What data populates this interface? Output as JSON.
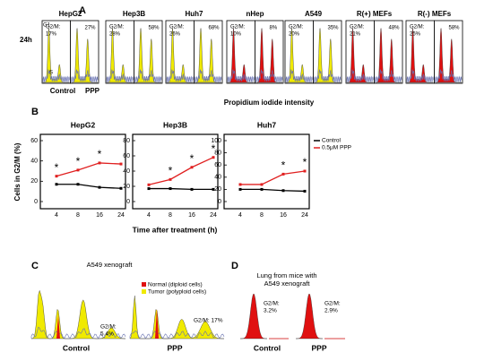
{
  "panels": {
    "A": {
      "label": "A",
      "time": "24h",
      "axis": "Propidium iodide intensity",
      "control": "Control",
      "ppp": "PPP",
      "cells": [
        {
          "name": "HepG2",
          "color": "#f0ea00",
          "g1": "G1",
          "s": "S",
          "control": [
            "G2/M:",
            "17%"
          ],
          "ppp": [
            "27%"
          ]
        },
        {
          "name": "Hep3B",
          "color": "#f0ea00",
          "control": [
            "G2/M:",
            "28%"
          ],
          "ppp": [
            "58%"
          ]
        },
        {
          "name": "Huh7",
          "color": "#f0ea00",
          "control": [
            "G2/M:",
            "26%"
          ],
          "ppp": [
            "68%"
          ]
        },
        {
          "name": "nHep",
          "color": "#e01010",
          "control": [
            "G2/M:",
            "10%"
          ],
          "ppp": [
            "8%"
          ]
        },
        {
          "name": "A549",
          "color": "#f0ea00",
          "control": [
            "G2/M:",
            "20%"
          ],
          "ppp": [
            "35%"
          ]
        },
        {
          "name": "R(+) MEFs",
          "color": "#e01010",
          "control": [
            "G2/M:",
            "21%"
          ],
          "ppp": [
            "48%"
          ]
        },
        {
          "name": "R(-) MEFs",
          "color": "#e01010",
          "control": [
            "G2/M:",
            "25%"
          ],
          "ppp": [
            "58%"
          ]
        }
      ]
    },
    "B": {
      "label": "B",
      "y_label": "Cells in G2/M (%)",
      "x_label": "Time after treatment (h)"
    },
    "C": {
      "label": "C",
      "title": "A549 xenograft",
      "legend": [
        {
          "text": "Normal (diploid cells)",
          "color": "#e01010"
        },
        {
          "text": "Tumor (polyploid  cells)",
          "color": "#f0ea00"
        }
      ],
      "control": {
        "name": "Control",
        "g2m": [
          "G2/M:",
          "5.4%"
        ]
      },
      "ppp": {
        "name": "PPP",
        "g2m": [
          "G2/M:  17%"
        ]
      }
    },
    "D": {
      "label": "D",
      "title": [
        "Lung from mice with",
        "A549 xenograft"
      ],
      "control": {
        "name": "Control",
        "g2m": [
          "G2/M:",
          "3.2%"
        ]
      },
      "ppp": {
        "name": "PPP",
        "g2m": [
          "G2/M:",
          "2.9%"
        ]
      }
    }
  },
  "chart_data": [
    {
      "type": "line",
      "title": "HepG2",
      "categories": [
        "4",
        "8",
        "16",
        "24"
      ],
      "ylim": [
        0,
        60
      ],
      "yticks": [
        0,
        20,
        40,
        60
      ],
      "series": [
        {
          "color": "#000000",
          "values": [
            17,
            17,
            14,
            13
          ]
        },
        {
          "color": "#e02020",
          "values": [
            25,
            31,
            38,
            37
          ]
        }
      ],
      "annotations": [
        {
          "text": "*",
          "at": "4"
        },
        {
          "text": "*",
          "at": "8"
        },
        {
          "text": "*",
          "at": "16"
        }
      ]
    },
    {
      "type": "line",
      "title": "Hep3B",
      "categories": [
        "4",
        "8",
        "16",
        "24"
      ],
      "ylim": [
        0,
        80
      ],
      "yticks": [
        0,
        20,
        40,
        60,
        80
      ],
      "series": [
        {
          "color": "#000000",
          "values": [
            17,
            17,
            16,
            16
          ]
        },
        {
          "color": "#e02020",
          "values": [
            22,
            29,
            45,
            58
          ]
        }
      ],
      "annotations": [
        {
          "text": "*",
          "at": "8"
        },
        {
          "text": "*",
          "at": "16"
        },
        {
          "text": "*",
          "at": "24"
        }
      ]
    },
    {
      "type": "line",
      "title": "Huh7",
      "categories": [
        "4",
        "8",
        "16",
        "24"
      ],
      "ylim": [
        0,
        100
      ],
      "yticks": [
        0,
        20,
        40,
        60,
        80,
        100
      ],
      "series": [
        {
          "name": "Control",
          "color": "#000000",
          "values": [
            20,
            20,
            18,
            17
          ]
        },
        {
          "name": "0.5μM PPP",
          "color": "#e02020",
          "values": [
            28,
            28,
            45,
            50
          ]
        }
      ],
      "annotations": [
        {
          "text": "*",
          "at": "16"
        },
        {
          "text": "*",
          "at": "24"
        }
      ],
      "legend": "right"
    }
  ]
}
